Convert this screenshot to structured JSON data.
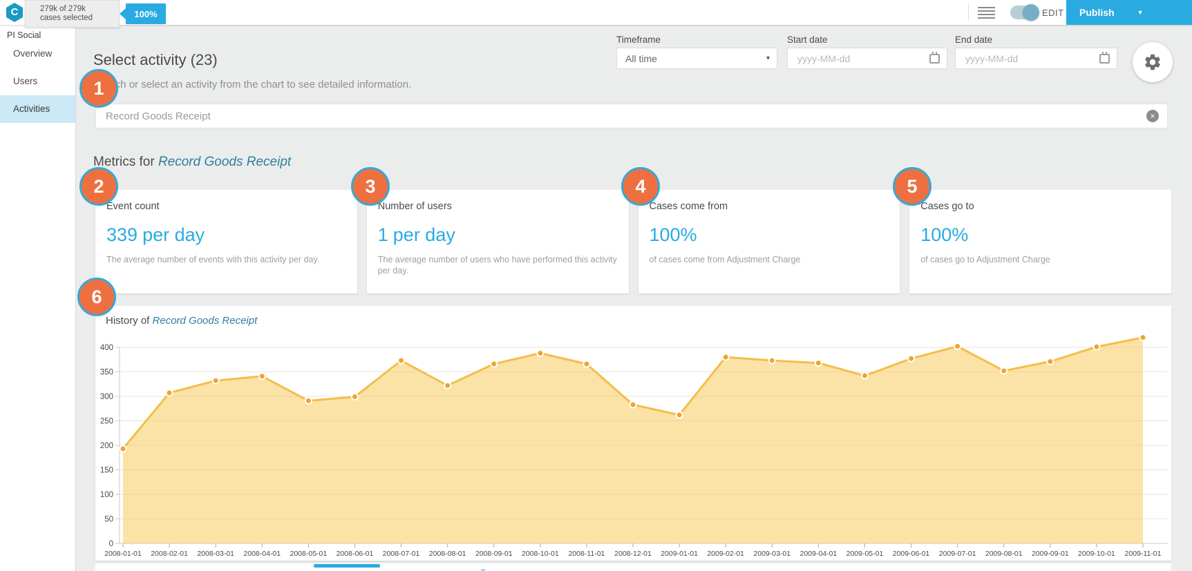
{
  "topbar": {
    "logo_letter": "C",
    "cases_selected_line1": "279k of 279k",
    "cases_selected_line2": "cases selected",
    "selection_percent": "100%",
    "edit_label": "EDIT",
    "publish_label": "Publish",
    "accent_color": "#29ABE2"
  },
  "sidebar": {
    "title": "PI Social",
    "items": [
      {
        "label": "Overview",
        "active": false
      },
      {
        "label": "Users",
        "active": false
      },
      {
        "label": "Activities",
        "active": true
      }
    ]
  },
  "header": {
    "title": "Select activity (23)",
    "subtitle": "Search or select an activity from the chart to see detailed information.",
    "timeframe_label": "Timeframe",
    "timeframe_value": "All time",
    "start_date_label": "Start date",
    "start_date_placeholder": "yyyy-MM-dd",
    "end_date_label": "End date",
    "end_date_placeholder": "yyyy-MM-dd"
  },
  "search": {
    "value": "Record Goods Receipt"
  },
  "metrics": {
    "heading_prefix": "Metrics for ",
    "heading_activity": "Record Goods Receipt",
    "cards": [
      {
        "label": "Event count",
        "value": "339",
        "unit": "per day",
        "description": "The average number of events with this activity per day."
      },
      {
        "label": "Number of users",
        "value": "1",
        "unit": "per day",
        "description": "The average number of users who have performed this activity per day."
      },
      {
        "label": "Cases come from",
        "value": "100%",
        "unit": "",
        "description": "of cases come from Adjustment Charge"
      },
      {
        "label": "Cases go to",
        "value": "100%",
        "unit": "",
        "description": "of cases go to Adjustment Charge"
      }
    ]
  },
  "history": {
    "heading_prefix": "History of ",
    "heading_activity": "Record Goods Receipt"
  },
  "annotations": [
    "1",
    "2",
    "3",
    "4",
    "5",
    "6"
  ],
  "chart_data": {
    "type": "area",
    "title": "History of Record Goods Receipt",
    "x": [
      "2008-01-01",
      "2008-02-01",
      "2008-03-01",
      "2008-04-01",
      "2008-05-01",
      "2008-06-01",
      "2008-07-01",
      "2008-08-01",
      "2008-09-01",
      "2008-10-01",
      "2008-11-01",
      "2008-12-01",
      "2009-01-01",
      "2009-02-01",
      "2009-03-01",
      "2009-04-01",
      "2009-05-01",
      "2009-06-01",
      "2009-07-01",
      "2009-08-01",
      "2009-09-01",
      "2009-10-01",
      "2009-11-01"
    ],
    "values": [
      193,
      307,
      332,
      341,
      291,
      299,
      373,
      322,
      366,
      388,
      366,
      283,
      262,
      380,
      373,
      368,
      342,
      377,
      402,
      352,
      371,
      401,
      420
    ],
    "xlabel": "",
    "ylabel": "",
    "ylim": [
      0,
      400
    ],
    "ytick_step": 50,
    "grid": true,
    "legend": "none",
    "line_color": "#F3BE4B",
    "fill_color": "#F7CB5D",
    "point_color": "#F0A32F"
  }
}
